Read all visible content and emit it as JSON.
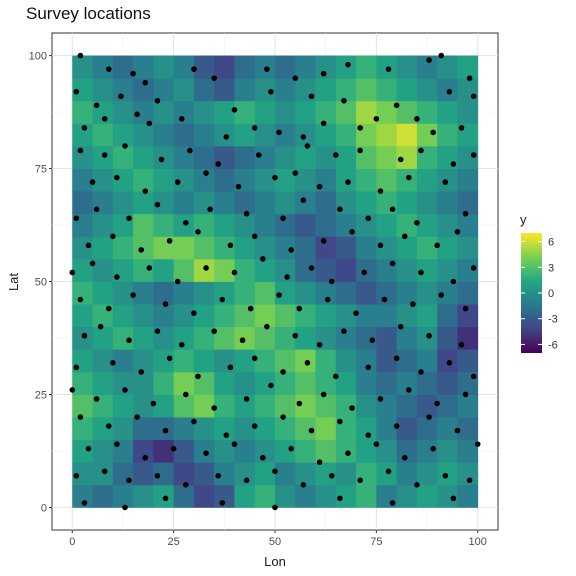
{
  "chart_data": {
    "type": "heatmap",
    "title": "Survey locations",
    "xlabel": "Lon",
    "ylabel": "Lat",
    "xlim": [
      -5,
      105
    ],
    "ylim": [
      -5,
      105
    ],
    "x_ticks": [
      0,
      25,
      50,
      75,
      100
    ],
    "y_ticks": [
      0,
      25,
      50,
      75,
      100
    ],
    "grid": true,
    "raster": {
      "x_range": [
        0,
        100
      ],
      "y_range": [
        0,
        100
      ],
      "cols": 20,
      "rows": 20,
      "y_order": "bottom-to-top",
      "values": [
        [
          -1,
          -2,
          -1,
          0,
          1,
          -2,
          -4,
          -3,
          1,
          2,
          0,
          -1,
          0,
          1,
          2,
          -1,
          0,
          1,
          0,
          -1
        ],
        [
          0,
          0,
          -2,
          -3,
          -2,
          -4,
          -3,
          -1,
          0,
          1,
          -1,
          0,
          1,
          0,
          2,
          1,
          -1,
          0,
          1,
          0
        ],
        [
          1,
          0,
          -1,
          -4,
          -5,
          -3,
          -1,
          0,
          -1,
          0,
          1,
          2,
          3,
          2,
          1,
          0,
          -2,
          -1,
          0,
          -1
        ],
        [
          2,
          1,
          0,
          -2,
          -2,
          -1,
          0,
          1,
          0,
          1,
          2,
          3,
          4,
          2,
          1,
          -1,
          -3,
          -2,
          -1,
          -2
        ],
        [
          3,
          2,
          1,
          0,
          1,
          3,
          4,
          2,
          1,
          2,
          3,
          4,
          3,
          2,
          0,
          -1,
          -2,
          -3,
          -2,
          -1
        ],
        [
          2,
          1,
          0,
          0,
          2,
          4,
          3,
          1,
          0,
          1,
          2,
          3,
          2,
          1,
          -1,
          -2,
          -1,
          -2,
          -3,
          -2
        ],
        [
          1,
          0,
          -1,
          0,
          1,
          2,
          1,
          0,
          1,
          2,
          3,
          4,
          2,
          0,
          -1,
          -3,
          -2,
          -1,
          -4,
          -3
        ],
        [
          0,
          1,
          2,
          1,
          0,
          1,
          2,
          3,
          4,
          3,
          2,
          1,
          0,
          -1,
          -2,
          -3,
          -1,
          0,
          -3,
          -5
        ],
        [
          1,
          2,
          1,
          0,
          -1,
          0,
          1,
          2,
          3,
          4,
          3,
          2,
          1,
          0,
          -1,
          -1,
          0,
          1,
          -2,
          -4
        ],
        [
          2,
          1,
          0,
          -1,
          -2,
          -1,
          0,
          1,
          2,
          3,
          1,
          0,
          -1,
          -2,
          -3,
          -2,
          -1,
          0,
          -1,
          -2
        ],
        [
          1,
          0,
          1,
          2,
          1,
          3,
          5,
          4,
          2,
          1,
          0,
          -2,
          -3,
          -4,
          -2,
          -1,
          0,
          1,
          0,
          -1
        ],
        [
          0,
          1,
          2,
          3,
          4,
          4,
          3,
          2,
          1,
          0,
          -1,
          -2,
          -4,
          -3,
          -1,
          0,
          1,
          2,
          1,
          0
        ],
        [
          -1,
          0,
          1,
          3,
          2,
          1,
          2,
          1,
          0,
          -1,
          -2,
          -3,
          -2,
          -1,
          0,
          1,
          2,
          1,
          0,
          -1
        ],
        [
          -2,
          -1,
          0,
          1,
          0,
          -1,
          0,
          -1,
          -2,
          -1,
          0,
          -1,
          -2,
          0,
          1,
          2,
          1,
          0,
          -1,
          -2
        ],
        [
          -1,
          0,
          1,
          2,
          1,
          0,
          -1,
          -2,
          -1,
          0,
          1,
          0,
          -1,
          1,
          2,
          3,
          2,
          1,
          0,
          -1
        ],
        [
          0,
          1,
          2,
          1,
          0,
          -1,
          -2,
          -3,
          -2,
          -1,
          0,
          1,
          0,
          1,
          3,
          4,
          5,
          2,
          1,
          0
        ],
        [
          1,
          2,
          1,
          0,
          -1,
          -2,
          -1,
          0,
          1,
          0,
          -1,
          0,
          1,
          2,
          4,
          5,
          6,
          4,
          2,
          1
        ],
        [
          2,
          1,
          0,
          -1,
          0,
          -1,
          0,
          1,
          2,
          1,
          0,
          1,
          2,
          3,
          5,
          4,
          3,
          2,
          1,
          0
        ],
        [
          1,
          0,
          -1,
          -2,
          -1,
          0,
          -2,
          -3,
          -1,
          0,
          -1,
          0,
          1,
          2,
          3,
          2,
          1,
          0,
          -1,
          0
        ],
        [
          0,
          -1,
          -2,
          -1,
          0,
          -1,
          -3,
          -4,
          -2,
          -1,
          -2,
          -1,
          0,
          1,
          2,
          1,
          0,
          -1,
          0,
          1
        ]
      ]
    },
    "legend": {
      "title": "y",
      "placement": "right",
      "ticks": [
        6,
        3,
        0,
        -3,
        -6
      ],
      "tick_labels": [
        "6",
        "3",
        "0",
        "-3",
        "-6"
      ],
      "range": [
        -7,
        7
      ]
    },
    "colors": [
      "#440154",
      "#414487",
      "#2a788e",
      "#22a884",
      "#7ad151",
      "#fde725"
    ],
    "point_color": "#000000",
    "points": [
      [
        2,
        100
      ],
      [
        9,
        97
      ],
      [
        15,
        96
      ],
      [
        18,
        94
      ],
      [
        30,
        97
      ],
      [
        35,
        95
      ],
      [
        48,
        97
      ],
      [
        55,
        95
      ],
      [
        62,
        96
      ],
      [
        68,
        98
      ],
      [
        78,
        97
      ],
      [
        88,
        99
      ],
      [
        91,
        100
      ],
      [
        98,
        95
      ],
      [
        1,
        92
      ],
      [
        6,
        89
      ],
      [
        12,
        91
      ],
      [
        21,
        90
      ],
      [
        40,
        88
      ],
      [
        49,
        92
      ],
      [
        59,
        91
      ],
      [
        67,
        90
      ],
      [
        80,
        89
      ],
      [
        93,
        92
      ],
      [
        99,
        91
      ],
      [
        3,
        84
      ],
      [
        8,
        86
      ],
      [
        16,
        87
      ],
      [
        19,
        85
      ],
      [
        27,
        86
      ],
      [
        38,
        82
      ],
      [
        45,
        84
      ],
      [
        51,
        83
      ],
      [
        57,
        82
      ],
      [
        62,
        85
      ],
      [
        71,
        84
      ],
      [
        75,
        86
      ],
      [
        85,
        86
      ],
      [
        89,
        83
      ],
      [
        96,
        84
      ],
      [
        2,
        79
      ],
      [
        8,
        78
      ],
      [
        13,
        80
      ],
      [
        22,
        77
      ],
      [
        29,
        79
      ],
      [
        36,
        76
      ],
      [
        46,
        78
      ],
      [
        58,
        80
      ],
      [
        65,
        78
      ],
      [
        71,
        79
      ],
      [
        81,
        77
      ],
      [
        86,
        79
      ],
      [
        94,
        76
      ],
      [
        99,
        78
      ],
      [
        5,
        72
      ],
      [
        11,
        73
      ],
      [
        18,
        70
      ],
      [
        26,
        72
      ],
      [
        33,
        74
      ],
      [
        41,
        71
      ],
      [
        50,
        73
      ],
      [
        55,
        74
      ],
      [
        61,
        71
      ],
      [
        68,
        72
      ],
      [
        76,
        70
      ],
      [
        83,
        73
      ],
      [
        92,
        72
      ],
      [
        1,
        64
      ],
      [
        6,
        66
      ],
      [
        14,
        64
      ],
      [
        21,
        67
      ],
      [
        28,
        63
      ],
      [
        34,
        66
      ],
      [
        43,
        65
      ],
      [
        52,
        64
      ],
      [
        57,
        68
      ],
      [
        66,
        66
      ],
      [
        73,
        64
      ],
      [
        79,
        66
      ],
      [
        85,
        63
      ],
      [
        97,
        65
      ],
      [
        4,
        58
      ],
      [
        10,
        60
      ],
      [
        17,
        57
      ],
      [
        24,
        59
      ],
      [
        31,
        61
      ],
      [
        39,
        58
      ],
      [
        45,
        60
      ],
      [
        54,
        57
      ],
      [
        62,
        59
      ],
      [
        69,
        61
      ],
      [
        76,
        58
      ],
      [
        82,
        60
      ],
      [
        90,
        58
      ],
      [
        95,
        61
      ],
      [
        0,
        52
      ],
      [
        5,
        54
      ],
      [
        11,
        51
      ],
      [
        19,
        53
      ],
      [
        26,
        50
      ],
      [
        33,
        53
      ],
      [
        40,
        52
      ],
      [
        47,
        55
      ],
      [
        53,
        51
      ],
      [
        59,
        53
      ],
      [
        64,
        50
      ],
      [
        72,
        52
      ],
      [
        79,
        54
      ],
      [
        86,
        52
      ],
      [
        94,
        50
      ],
      [
        99,
        53
      ],
      [
        2,
        46
      ],
      [
        9,
        44
      ],
      [
        15,
        47
      ],
      [
        23,
        45
      ],
      [
        30,
        43
      ],
      [
        37,
        46
      ],
      [
        44,
        44
      ],
      [
        51,
        47
      ],
      [
        56,
        44
      ],
      [
        63,
        46
      ],
      [
        70,
        43
      ],
      [
        77,
        46
      ],
      [
        84,
        45
      ],
      [
        91,
        47
      ],
      [
        97,
        44
      ],
      [
        3,
        38
      ],
      [
        7,
        40
      ],
      [
        14,
        37
      ],
      [
        21,
        39
      ],
      [
        27,
        36
      ],
      [
        35,
        39
      ],
      [
        42,
        37
      ],
      [
        48,
        40
      ],
      [
        55,
        38
      ],
      [
        61,
        36
      ],
      [
        67,
        39
      ],
      [
        74,
        37
      ],
      [
        81,
        40
      ],
      [
        88,
        38
      ],
      [
        96,
        36
      ],
      [
        1,
        31
      ],
      [
        10,
        32
      ],
      [
        17,
        30
      ],
      [
        24,
        33
      ],
      [
        31,
        29
      ],
      [
        39,
        31
      ],
      [
        45,
        33
      ],
      [
        52,
        30
      ],
      [
        58,
        32
      ],
      [
        65,
        29
      ],
      [
        73,
        31
      ],
      [
        80,
        33
      ],
      [
        86,
        30
      ],
      [
        93,
        32
      ],
      [
        99,
        29
      ],
      [
        0,
        26
      ],
      [
        6,
        24
      ],
      [
        13,
        26
      ],
      [
        20,
        23
      ],
      [
        28,
        25
      ],
      [
        35,
        22
      ],
      [
        43,
        24
      ],
      [
        49,
        27
      ],
      [
        56,
        23
      ],
      [
        62,
        25
      ],
      [
        69,
        22
      ],
      [
        76,
        24
      ],
      [
        83,
        26
      ],
      [
        90,
        23
      ],
      [
        97,
        25
      ],
      [
        2,
        20
      ],
      [
        9,
        18
      ],
      [
        16,
        20
      ],
      [
        23,
        17
      ],
      [
        30,
        19
      ],
      [
        38,
        16
      ],
      [
        45,
        18
      ],
      [
        52,
        20
      ],
      [
        59,
        17
      ],
      [
        66,
        19
      ],
      [
        73,
        16
      ],
      [
        80,
        18
      ],
      [
        88,
        20
      ],
      [
        95,
        17
      ],
      [
        4,
        13
      ],
      [
        11,
        14
      ],
      [
        18,
        11
      ],
      [
        25,
        13
      ],
      [
        33,
        12
      ],
      [
        40,
        14
      ],
      [
        47,
        11
      ],
      [
        54,
        13
      ],
      [
        61,
        10
      ],
      [
        68,
        12
      ],
      [
        75,
        14
      ],
      [
        82,
        11
      ],
      [
        89,
        13
      ],
      [
        100,
        14
      ],
      [
        1,
        7
      ],
      [
        8,
        8
      ],
      [
        14,
        6
      ],
      [
        21,
        7
      ],
      [
        28,
        5
      ],
      [
        36,
        7
      ],
      [
        43,
        6
      ],
      [
        50,
        8
      ],
      [
        57,
        5
      ],
      [
        64,
        7
      ],
      [
        71,
        6
      ],
      [
        78,
        8
      ],
      [
        85,
        5
      ],
      [
        92,
        7
      ],
      [
        98,
        6
      ],
      [
        3,
        1
      ],
      [
        13,
        0
      ],
      [
        23,
        2
      ],
      [
        37,
        1
      ],
      [
        50,
        0
      ],
      [
        66,
        2
      ],
      [
        79,
        1
      ],
      [
        94,
        2
      ]
    ]
  }
}
